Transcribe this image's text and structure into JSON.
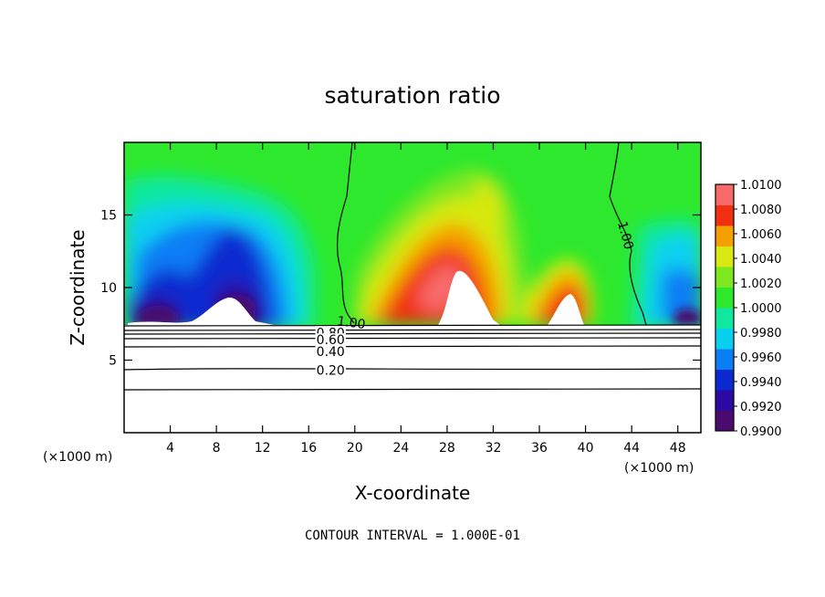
{
  "chart_data": {
    "type": "heatmap",
    "title": "saturation ratio",
    "xlabel": "X-coordinate",
    "ylabel": "Z-coordinate",
    "x_unit_left": "(×1000 m)",
    "x_unit_right": "(×1000 m)",
    "xlim": [
      0,
      50
    ],
    "ylim": [
      0,
      20
    ],
    "x_ticks": [
      4,
      8,
      12,
      16,
      20,
      24,
      28,
      32,
      36,
      40,
      44,
      48
    ],
    "y_ticks": [
      5,
      10,
      15
    ],
    "colorbar": {
      "min": 0.99,
      "max": 1.01,
      "labels": [
        "1.0100",
        "1.0080",
        "1.0060",
        "1.0040",
        "1.0020",
        "1.0000",
        "0.9980",
        "0.9960",
        "0.9940",
        "0.9920",
        "0.9900"
      ],
      "colors": [
        "#4a0a6e",
        "#2a0aa0",
        "#0a2ad0",
        "#0a7ef5",
        "#0ad0f0",
        "#10e8a0",
        "#2de82d",
        "#7de820",
        "#d8e810",
        "#f5a000",
        "#f03010",
        "#f86a6a"
      ]
    },
    "contour_labels": [
      {
        "text": "1.00",
        "x": 19.7,
        "y": 7.6
      },
      {
        "text": "1.00",
        "x": 43.5,
        "y": 13.6
      },
      {
        "text": "0.80",
        "x": 17.9,
        "y": 6.9
      },
      {
        "text": "0.60",
        "x": 17.9,
        "y": 6.4
      },
      {
        "text": "0.40",
        "x": 17.9,
        "y": 5.6
      },
      {
        "text": "0.20",
        "x": 17.9,
        "y": 4.3
      }
    ],
    "footer": "CONTOUR INTERVAL = 1.000E-01"
  }
}
